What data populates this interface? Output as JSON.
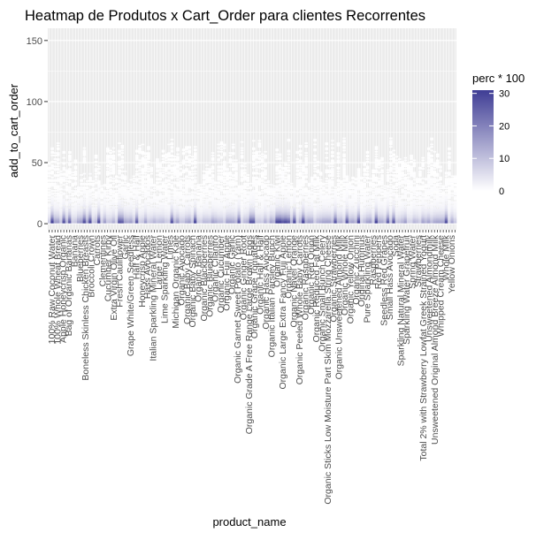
{
  "chart_data": {
    "type": "heatmap",
    "title": "Heatmap de Produtos x Cart_Order para clientes Recorrentes",
    "xlabel": "product_name",
    "ylabel": "add_to_cart_order",
    "y_ticks": [
      0,
      50,
      100,
      150
    ],
    "ylim": [
      -5,
      160
    ],
    "legend": {
      "title": "perc * 100",
      "ticks": [
        0,
        10,
        20,
        30
      ],
      "range": [
        0,
        31
      ],
      "colors": [
        "#ffffff",
        "#3f3d95"
      ],
      "placement": "right"
    },
    "grid": true,
    "background": "#ebebeb",
    "products": [
      "100% Raw Coconut Water",
      "100% Whole Wheat Bread",
      "Apple Honeycrisp Organic",
      "Bag of Organic Bananas",
      "Banana",
      "Blueberries",
      "Boneless Skinless Chicken Breasts",
      "Broccoli Crown",
      "Carrots",
      "Clementines",
      "Cucumber Kirby",
      "Extra Virgin Olive Oil",
      "Fresh Cauliflower",
      "Garlic",
      "Grape White/Green Seedless",
      "Half & Half",
      "Honeycrisp Apple",
      "Hass Avocados",
      "Italian Sparkling Mineral Water",
      "Large Lemon",
      "Lime Sparkling Water",
      "Limes",
      "Michigan Organic Kale",
      "Organic Avocado",
      "Organic Baby Carrots",
      "Organic Baby Spinach",
      "Organic Banana",
      "Organic Blackberries",
      "Organic Blueberries",
      "Organic Cilantro",
      "Organic Cucumber",
      "Organic Fuji Apple",
      "Organic Garlic",
      "Organic Garnet Sweet Potato (Yam)",
      "Organic Ginger Root",
      "Organic Grade A Free Range Large Brown Eggs",
      "Organic Grape Tomatoes",
      "Organic Half & Half",
      "Organic Hass Avocado",
      "Organic Italian Parsley Bunch",
      "Organic Kiwi",
      "Organic Large Extra Fancy Fuji Apple",
      "Organic Lemon",
      "Organic Navel Orange",
      "Organic Peeled Whole Baby Carrots",
      "Organic Raspberries",
      "Organic Red Onion",
      "Organic Reduced Fat Milk",
      "Organic Small Bunch Celery",
      "Organic Sticks Low Moisture Part Skim Mozzarella String Cheese",
      "Organic Strawberries",
      "Organic Unsweetened Almond Milk",
      "Organic Whole Milk",
      "Organic Yellow Onion",
      "Organic Zucchini",
      "Original Hummus",
      "Pure Sparkling Water",
      "Raspberries",
      "Red Peppers",
      "Seedless Red Grapes",
      "Small Hass Avocado",
      "Soda",
      "Sparkling Natural Mineral Water",
      "Sparkling Water Grapefruit",
      "Spring Water",
      "Strawberries",
      "Total 2% with Strawberry Lowfat Greek Strained Yogurt",
      "Unsweetened Almondmilk",
      "Unsweetened Original Almond Breeze Almond Milk",
      "Whipped Cream Cheese",
      "Whole Milk",
      "Yellow Onions"
    ],
    "cell_values": "perc * 100 per (product_name, add_to_cart_order); highest near add_to_cart_order 1-2 (about 20-30), fading toward 0 above about 20, sparse light cells up to about 70"
  }
}
